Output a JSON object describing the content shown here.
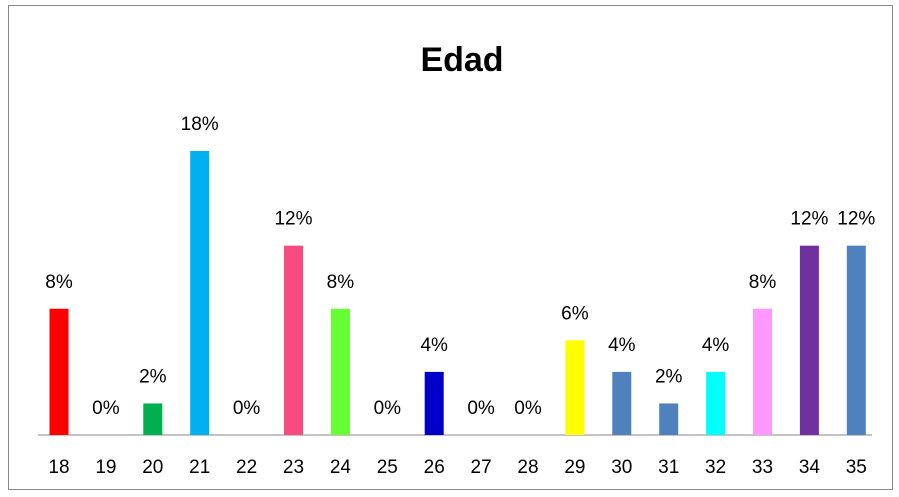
{
  "chart_data": {
    "type": "bar",
    "title": "Edad",
    "categories": [
      "18",
      "19",
      "20",
      "21",
      "22",
      "23",
      "24",
      "25",
      "26",
      "27",
      "28",
      "29",
      "30",
      "31",
      "32",
      "33",
      "34",
      "35"
    ],
    "values": [
      8,
      0,
      2,
      18,
      0,
      12,
      8,
      0,
      4,
      0,
      0,
      6,
      4,
      2,
      4,
      8,
      12,
      12
    ],
    "value_labels": [
      "8%",
      "0%",
      "2%",
      "18%",
      "0%",
      "12%",
      "8%",
      "0%",
      "4%",
      "0%",
      "0%",
      "6%",
      "4%",
      "2%",
      "4%",
      "8%",
      "12%",
      "12%"
    ],
    "colors": [
      "#ff0000",
      "#4f81bd",
      "#00b050",
      "#00b0f0",
      "#4f81bd",
      "#f84b7f",
      "#66ff33",
      "#4f81bd",
      "#0000c8",
      "#4f81bd",
      "#4f81bd",
      "#ffff00",
      "#4f81bd",
      "#4f81bd",
      "#00ffff",
      "#ff99ff",
      "#7030a0",
      "#4f81bd"
    ]
  }
}
